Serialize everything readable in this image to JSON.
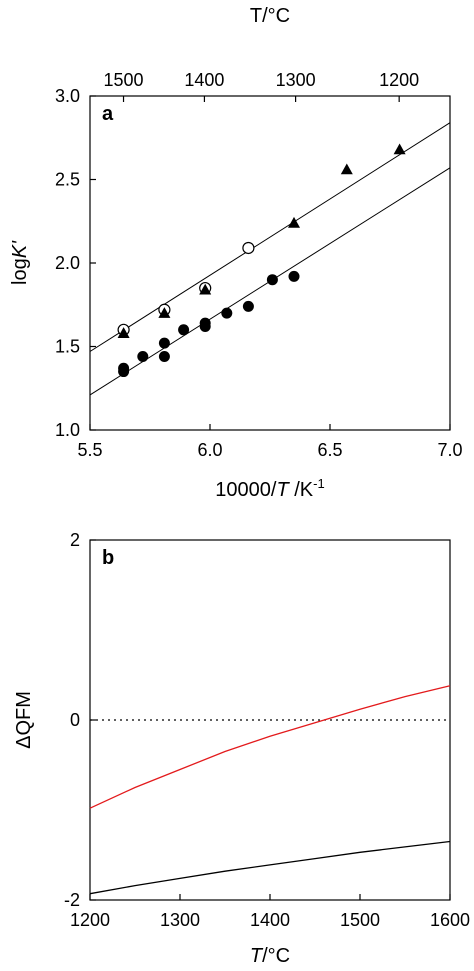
{
  "chart_data": [
    {
      "panel": "a",
      "type": "scatter",
      "xlabel": {
        "main": "10000/",
        "var": "T",
        "unit": " /K",
        "sup": "-1"
      },
      "ylabel": {
        "main": "log",
        "var": "K'"
      },
      "top_axis_label": {
        "var": "T",
        "unit": "/°C"
      },
      "xlim": [
        5.5,
        7.0
      ],
      "ylim": [
        1.0,
        3.0
      ],
      "xticks": [
        5.5,
        6.0,
        6.5,
        7.0
      ],
      "xtick_labels": [
        "5.5",
        "6.0",
        "6.5",
        "7.0"
      ],
      "yticks": [
        1.0,
        1.5,
        2.0,
        2.5,
        3.0
      ],
      "ytick_labels": [
        "1.0",
        "1.5",
        "2.0",
        "2.5",
        "3.0"
      ],
      "top_ticks_celsius": [
        1500,
        1400,
        1300,
        1200
      ],
      "top_tick_labels": [
        "1500",
        "1400",
        "1300",
        "1200"
      ],
      "series": [
        {
          "marker": "open-circle",
          "points": [
            [
              5.64,
              1.6
            ],
            [
              5.81,
              1.72
            ],
            [
              5.98,
              1.85
            ],
            [
              6.16,
              2.09
            ]
          ]
        },
        {
          "marker": "filled-triangle",
          "points": [
            [
              5.64,
              1.58
            ],
            [
              5.81,
              1.7
            ],
            [
              5.98,
              1.84
            ],
            [
              6.35,
              2.24
            ],
            [
              6.57,
              2.56
            ],
            [
              6.79,
              2.68
            ]
          ]
        },
        {
          "marker": "filled-circle",
          "points": [
            [
              5.64,
              1.35
            ],
            [
              5.64,
              1.37
            ],
            [
              5.72,
              1.44
            ],
            [
              5.81,
              1.44
            ],
            [
              5.81,
              1.52
            ],
            [
              5.89,
              1.6
            ],
            [
              5.98,
              1.62
            ],
            [
              5.98,
              1.64
            ],
            [
              6.07,
              1.7
            ],
            [
              6.16,
              1.74
            ],
            [
              6.26,
              1.9
            ],
            [
              6.35,
              1.92
            ]
          ]
        }
      ],
      "fit_lines": [
        {
          "from": [
            5.5,
            1.47
          ],
          "to": [
            7.0,
            2.84
          ]
        },
        {
          "from": [
            5.5,
            1.21
          ],
          "to": [
            7.0,
            2.57
          ]
        }
      ],
      "colors": {
        "axes": "#000000",
        "markers": "#000000"
      }
    },
    {
      "panel": "b",
      "type": "line",
      "xlabel": {
        "var": "T",
        "unit": "/°C"
      },
      "ylabel": {
        "main": "ΔQFM"
      },
      "xlim": [
        1200,
        1600
      ],
      "ylim": [
        -2,
        2
      ],
      "xticks": [
        1200,
        1300,
        1400,
        1500,
        1600
      ],
      "xtick_labels": [
        "1200",
        "1300",
        "1400",
        "1500",
        "1600"
      ],
      "yticks": [
        -2,
        0,
        2
      ],
      "ytick_labels": [
        "-2",
        "0",
        "2"
      ],
      "reference_line": {
        "y": 0,
        "style": "dotted"
      },
      "series": [
        {
          "color": "#e31a1c",
          "x": [
            1200,
            1250,
            1300,
            1350,
            1400,
            1450,
            1500,
            1550,
            1600
          ],
          "y": [
            -0.98,
            -0.75,
            -0.55,
            -0.35,
            -0.18,
            -0.03,
            0.12,
            0.26,
            0.38
          ]
        },
        {
          "color": "#000000",
          "x": [
            1200,
            1250,
            1300,
            1350,
            1400,
            1450,
            1500,
            1550,
            1600
          ],
          "y": [
            -1.93,
            -1.84,
            -1.76,
            -1.68,
            -1.61,
            -1.54,
            -1.47,
            -1.41,
            -1.35
          ]
        }
      ]
    }
  ]
}
